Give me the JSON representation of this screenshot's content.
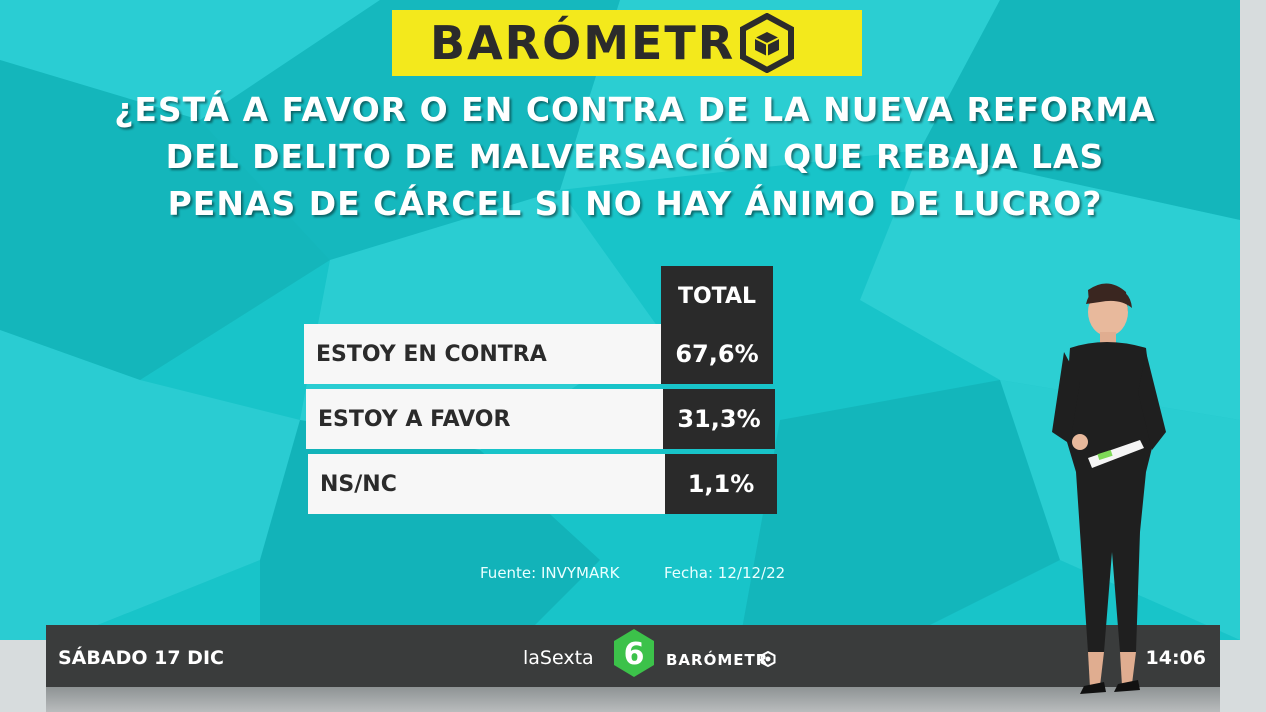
{
  "header": {
    "logo_text": "BARÓMETR"
  },
  "question_lines": [
    "¿ESTÁ A FAVOR O EN CONTRA DE LA NUEVA REFORMA",
    "DEL DELITO DE MALVERSACIÓN QUE REBAJA LAS",
    "PENAS DE CÁRCEL SI NO HAY ÁNIMO DE LUCRO?"
  ],
  "chart_data": {
    "type": "table",
    "column_header": "TOTAL",
    "categories": [
      "ESTOY EN CONTRA",
      "ESTOY A FAVOR",
      "NS/NC"
    ],
    "values": [
      67.6,
      31.3,
      1.1
    ],
    "value_labels": [
      "67,6%",
      "31,3%",
      "1,1%"
    ]
  },
  "footer": {
    "source": "Fuente: INVYMARK",
    "date": "Fecha: 12/12/22"
  },
  "ticker": {
    "date": "SÁBADO 17 DIC",
    "channel": "laSexta",
    "brand": "BARÓMETR",
    "time": "14:06"
  },
  "colors": {
    "background": "#18c4c9",
    "logo_yellow": "#f3e91c",
    "dark_cell": "#2a2a2a",
    "channel_green": "#3cc24a"
  }
}
